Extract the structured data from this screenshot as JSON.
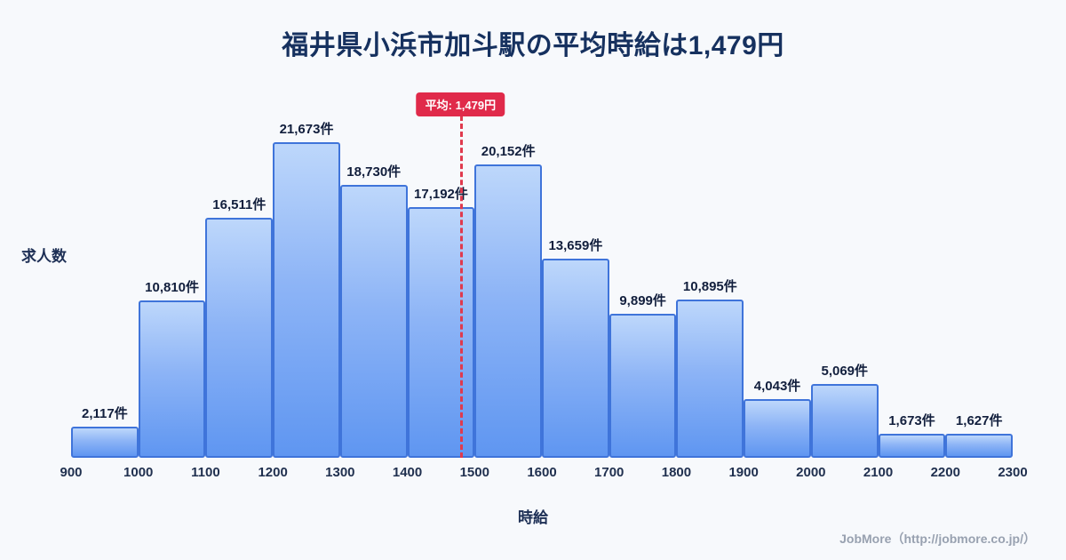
{
  "title": "福井県小浜市加斗駅の平均時給は1,479円",
  "average_badge": "平均: 1,479円",
  "footer": "JobMore（http://jobmore.co.jp/）",
  "colors": {
    "background": "#f7f9fc",
    "title": "#16315f",
    "bar_top": "#bdd7fb",
    "bar_bottom": "#5f96f1",
    "bar_border": "#3f74da",
    "average_line": "#e03a4e",
    "average_badge_bg": "#e02a4a"
  },
  "chart_data": {
    "type": "bar",
    "title": "福井県小浜市加斗駅の平均時給は1,479円",
    "xlabel": "時給",
    "ylabel": "求人数",
    "bin_edges": [
      900,
      1000,
      1100,
      1200,
      1300,
      1400,
      1500,
      1600,
      1700,
      1800,
      1900,
      2000,
      2100,
      2200,
      2300
    ],
    "categories": [
      "900-1000",
      "1000-1100",
      "1100-1200",
      "1200-1300",
      "1300-1400",
      "1400-1500",
      "1500-1600",
      "1600-1700",
      "1700-1800",
      "1800-1900",
      "1900-2000",
      "2000-2100",
      "2100-2200",
      "2200-2300"
    ],
    "values": [
      2117,
      10810,
      16511,
      21673,
      18730,
      17192,
      20152,
      13659,
      9899,
      10895,
      4043,
      5069,
      1673,
      1627
    ],
    "value_labels": [
      "2,117件",
      "10,810件",
      "16,511件",
      "21,673件",
      "18,730件",
      "17,192件",
      "20,152件",
      "13,659件",
      "9,899件",
      "10,895件",
      "4,043件",
      "5,069件",
      "1,673件",
      "1,627件"
    ],
    "average": 1479,
    "x_range": [
      900,
      2300
    ],
    "grid": false,
    "legend": false
  }
}
